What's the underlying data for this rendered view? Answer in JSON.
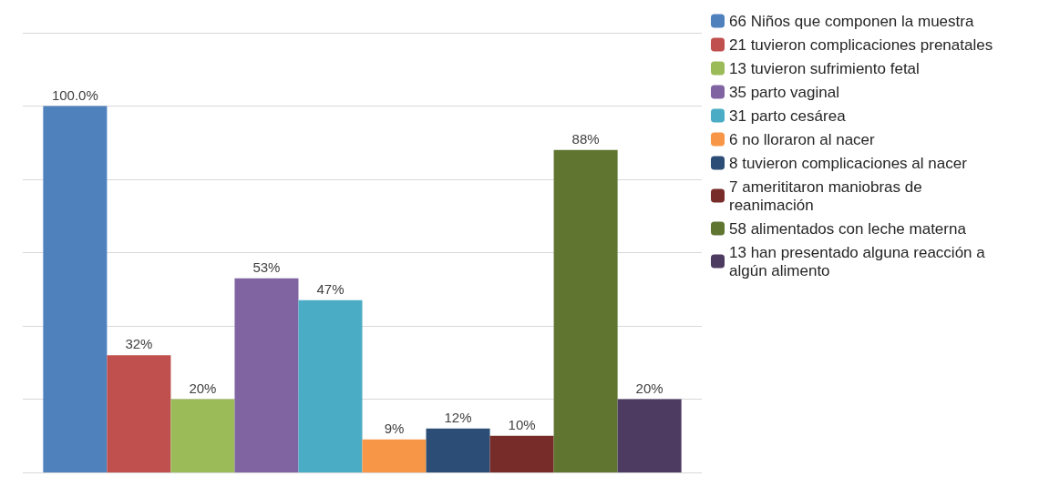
{
  "chart_data": {
    "type": "bar",
    "categories": [
      null
    ],
    "series": [
      {
        "name": "66 Niños que componen la muestra",
        "color": "#4f81bd",
        "values": [
          100
        ],
        "value_labels": [
          "100.0%"
        ]
      },
      {
        "name": "21 tuvieron complicaciones prenatales",
        "color": "#c0504d",
        "values": [
          32
        ],
        "value_labels": [
          "32%"
        ]
      },
      {
        "name": "13 tuvieron sufrimiento fetal",
        "color": "#9bbb59",
        "values": [
          20
        ],
        "value_labels": [
          "20%"
        ]
      },
      {
        "name": "35 parto vaginal",
        "color": "#8064a2",
        "values": [
          53
        ],
        "value_labels": [
          "53%"
        ]
      },
      {
        "name": "31 parto cesárea",
        "color": "#4bacc6",
        "values": [
          47
        ],
        "value_labels": [
          "47%"
        ]
      },
      {
        "name": "6 no lloraron al nacer",
        "color": "#f79646",
        "values": [
          9
        ],
        "value_labels": [
          "9%"
        ]
      },
      {
        "name": "8 tuvieron complicaciones al nacer",
        "color": "#2c4d75",
        "values": [
          12
        ],
        "value_labels": [
          "12%"
        ]
      },
      {
        "name": "7 amerititaron maniobras de reanimación",
        "color": "#772c2a",
        "values": [
          10
        ],
        "value_labels": [
          "10%"
        ]
      },
      {
        "name": "58 alimentados con leche materna",
        "color": "#5f7530",
        "values": [
          88
        ],
        "value_labels": [
          "88%"
        ]
      },
      {
        "name": "13 han presentado alguna reacción a algún alimento",
        "color": "#4d3b62",
        "values": [
          20
        ],
        "value_labels": [
          "20%"
        ]
      }
    ],
    "ylim": [
      0,
      120
    ],
    "yticks": [
      {
        "value": 0,
        "label": null
      },
      {
        "value": 20,
        "label": null
      },
      {
        "value": 40,
        "label": null
      },
      {
        "value": 60,
        "label": null
      },
      {
        "value": 80,
        "label": null
      },
      {
        "value": 100,
        "label": null
      },
      {
        "value": 120,
        "label": null
      }
    ],
    "grid": "y",
    "legend": "right"
  }
}
